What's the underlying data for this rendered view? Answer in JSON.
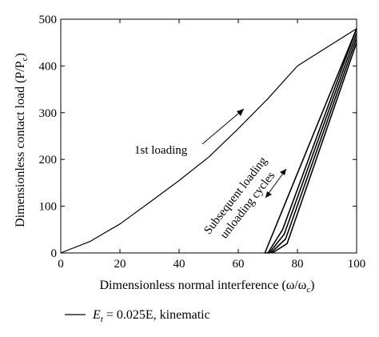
{
  "chart_data": {
    "type": "line",
    "xlabel": "Dimensionless normal interference (ω/ω",
    "xlabel_sub": "c",
    "xlabel_end": ")",
    "ylabel": "Dimensionless contact load (P/P",
    "ylabel_sub": "c",
    "ylabel_end": ")",
    "xlim": [
      0,
      100
    ],
    "ylim": [
      0,
      500
    ],
    "xticks": [
      "0",
      "20",
      "40",
      "60",
      "80",
      "100"
    ],
    "yticks": [
      "0",
      "100",
      "200",
      "300",
      "400",
      "500"
    ],
    "grid": false,
    "legend_position": "bottom-left",
    "legend": {
      "label_sym": "E",
      "label_sub": "t",
      "label_rest": " = 0.025E, kinematic"
    },
    "annotations": {
      "first_loading": "1st loading",
      "subsequent_line1": "Subsequent loading",
      "subsequent_line2": "unloading cycles"
    },
    "series": [
      {
        "role": "first-loading",
        "x": [
          0,
          10,
          20,
          30,
          40,
          50,
          60,
          70,
          80,
          90,
          100
        ],
        "y": [
          0,
          25,
          62,
          108,
          155,
          205,
          266,
          330,
          400,
          440,
          480
        ]
      },
      {
        "role": "cycle",
        "x": [
          100,
          75,
          70
        ],
        "y": [
          480,
          50,
          0
        ]
      },
      {
        "role": "cycle",
        "x": [
          100,
          75.5,
          70.5
        ],
        "y": [
          470,
          40,
          0
        ]
      },
      {
        "role": "cycle",
        "x": [
          100,
          76,
          71
        ],
        "y": [
          460,
          30,
          0
        ]
      },
      {
        "role": "cycle",
        "x": [
          100,
          76.5,
          71.5
        ],
        "y": [
          450,
          20,
          0
        ]
      },
      {
        "role": "cycle",
        "x": [
          100,
          69,
          70.5
        ],
        "y": [
          480,
          0,
          0
        ]
      }
    ]
  }
}
